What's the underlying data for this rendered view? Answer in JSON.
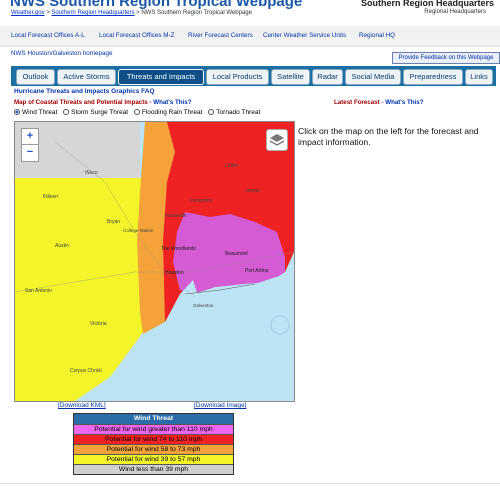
{
  "header": {
    "site_title": "NWS Southern Region Tropical Webpage",
    "breadcrumb": {
      "link1": "Weather.gov",
      "sep": " > ",
      "link2": "Southern Region Headquarters",
      "current": " > NWS Southern Region Tropical Webpage"
    },
    "region_name": "Southern Region Headquarters",
    "region_sub": "Regional Headquarters"
  },
  "nav": {
    "links": [
      "Local Forecast Offices A-L",
      "Local Forecast Offices M-Z",
      "River Forecast Centers",
      "Center Weather Service Units",
      "Regional HQ"
    ]
  },
  "office_link": "NWS Houston/Galveston homepage",
  "feedback_button": "Provide Feedback on this Webpage",
  "tabs": [
    "Outlook",
    "Active Storms",
    "Threats and Impacts",
    "Local Products",
    "Satellite",
    "Radar",
    "Social Media",
    "Preparedness",
    "Links"
  ],
  "active_tab": "Threats and Impacts",
  "faq_link": "Hurricane Threats and Impacts Graphics FAQ",
  "map_heading": {
    "title": "Map of Coastal Threats and Potential Impacts",
    "sep": " - ",
    "whats_this": "What's This?"
  },
  "latest_heading": {
    "title": "Latest Forecast",
    "sep": " - ",
    "whats_this": "What's This?"
  },
  "threat_options": [
    "Wind Threat",
    "Storm Surge Threat",
    "Flooding Rain Threat",
    "Tornado Threat"
  ],
  "selected_threat": "Wind Threat",
  "map": {
    "zoom_in": "+",
    "zoom_out": "−",
    "places": [
      "Waco",
      "Killeen",
      "Bryan",
      "College Station",
      "Austin",
      "Huntsville",
      "Livingston",
      "Jasper",
      "Lufkin",
      "The Woodlands",
      "Houston",
      "Beaumont",
      "Port Arthur",
      "San Antonio",
      "Victoria",
      "Corpus Christi",
      "Galveston"
    ]
  },
  "info_text": "Click on the map on the left for the forecast and impact information.",
  "download_kml": "[Download KML]",
  "download_image": "[Download Image]",
  "legend": {
    "title": "Wind Threat",
    "rows": [
      {
        "label": "Potential for wind greater than 110 mph",
        "color": "#ee66ee"
      },
      {
        "label": "Potential for wind 74 to 110 mph",
        "color": "#ee2222"
      },
      {
        "label": "Potential for wind 58 to 73 mph",
        "color": "#f4a23a"
      },
      {
        "label": "Potential for wind 39 to 57 mph",
        "color": "#f4f42a"
      },
      {
        "label": "Wind less than 39 mph",
        "color": "#cfcfcf"
      }
    ]
  },
  "colors": {
    "tabbar": "#1b6fa3",
    "link": "#0033aa",
    "heading_red": "#a00000",
    "water": "#bde4f5"
  }
}
